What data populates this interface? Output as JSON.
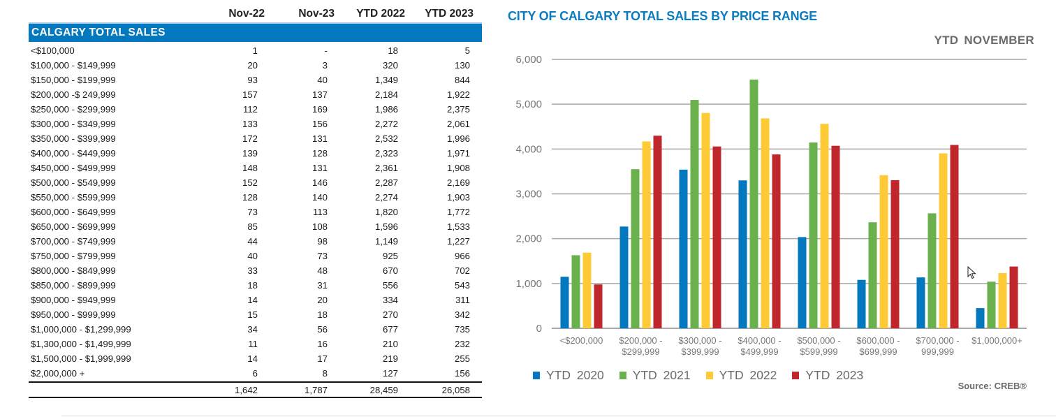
{
  "table": {
    "headers": [
      "",
      "Nov-22",
      "Nov-23",
      "YTD 2022",
      "YTD 2023"
    ],
    "section_title": "CALGARY TOTAL SALES",
    "rows": [
      {
        "label": "<$100,000",
        "nov22": "1",
        "nov23": "-",
        "ytd2022": "18",
        "ytd2023": "5"
      },
      {
        "label": "$100,000 - $149,999",
        "nov22": "20",
        "nov23": "3",
        "ytd2022": "320",
        "ytd2023": "130"
      },
      {
        "label": "$150,000 - $199,999",
        "nov22": "93",
        "nov23": "40",
        "ytd2022": "1,349",
        "ytd2023": "844"
      },
      {
        "label": "$200,000 -$ 249,999",
        "nov22": "157",
        "nov23": "137",
        "ytd2022": "2,184",
        "ytd2023": "1,922"
      },
      {
        "label": "$250,000 - $299,999",
        "nov22": "112",
        "nov23": "169",
        "ytd2022": "1,986",
        "ytd2023": "2,375"
      },
      {
        "label": "$300,000 - $349,999",
        "nov22": "133",
        "nov23": "156",
        "ytd2022": "2,272",
        "ytd2023": "2,061"
      },
      {
        "label": "$350,000 - $399,999",
        "nov22": "172",
        "nov23": "131",
        "ytd2022": "2,532",
        "ytd2023": "1,996"
      },
      {
        "label": "$400,000 - $449,999",
        "nov22": "139",
        "nov23": "128",
        "ytd2022": "2,323",
        "ytd2023": "1,971"
      },
      {
        "label": "$450,000 - $499,999",
        "nov22": "148",
        "nov23": "131",
        "ytd2022": "2,361",
        "ytd2023": "1,908"
      },
      {
        "label": "$500,000 - $549,999",
        "nov22": "152",
        "nov23": "146",
        "ytd2022": "2,287",
        "ytd2023": "2,169"
      },
      {
        "label": "$550,000 - $599,999",
        "nov22": "128",
        "nov23": "140",
        "ytd2022": "2,274",
        "ytd2023": "1,903"
      },
      {
        "label": "$600,000 - $649,999",
        "nov22": "73",
        "nov23": "113",
        "ytd2022": "1,820",
        "ytd2023": "1,772"
      },
      {
        "label": "$650,000 - $699,999",
        "nov22": "85",
        "nov23": "108",
        "ytd2022": "1,596",
        "ytd2023": "1,533"
      },
      {
        "label": "$700,000 - $749,999",
        "nov22": "44",
        "nov23": "98",
        "ytd2022": "1,149",
        "ytd2023": "1,227"
      },
      {
        "label": "$750,000 - $799,999",
        "nov22": "40",
        "nov23": "73",
        "ytd2022": "925",
        "ytd2023": "966"
      },
      {
        "label": "$800,000 - $849,999",
        "nov22": "33",
        "nov23": "48",
        "ytd2022": "670",
        "ytd2023": "702"
      },
      {
        "label": "$850,000 - $899,999",
        "nov22": "18",
        "nov23": "31",
        "ytd2022": "556",
        "ytd2023": "543"
      },
      {
        "label": "$900,000 - $949,999",
        "nov22": "14",
        "nov23": "20",
        "ytd2022": "334",
        "ytd2023": "311"
      },
      {
        "label": "$950,000 - $999,999",
        "nov22": "15",
        "nov23": "18",
        "ytd2022": "270",
        "ytd2023": "342"
      },
      {
        "label": "$1,000,000 - $1,299,999",
        "nov22": "34",
        "nov23": "56",
        "ytd2022": "677",
        "ytd2023": "735"
      },
      {
        "label": "$1,300,000 - $1,499,999",
        "nov22": "11",
        "nov23": "16",
        "ytd2022": "210",
        "ytd2023": "232"
      },
      {
        "label": "$1,500,000 - $1,999,999",
        "nov22": "14",
        "nov23": "17",
        "ytd2022": "219",
        "ytd2023": "255"
      },
      {
        "label": "$2,000,000 +",
        "nov22": "6",
        "nov23": "8",
        "ytd2022": "127",
        "ytd2023": "156"
      }
    ],
    "totals": {
      "label": "",
      "nov22": "1,642",
      "nov23": "1,787",
      "ytd2022": "28,459",
      "ytd2023": "26,058"
    },
    "section_color": "#0378be"
  },
  "chart_data": {
    "type": "bar",
    "title": "CITY OF CALGARY TOTAL SALES BY PRICE RANGE",
    "subtitle": "YTD  NOVEMBER",
    "xlabel": "",
    "ylabel": "",
    "ylim": [
      0,
      6000
    ],
    "yticks": [
      0,
      1000,
      2000,
      3000,
      4000,
      5000,
      6000
    ],
    "ytick_labels": [
      "0",
      "1,000",
      "2,000",
      "3,000",
      "4,000",
      "5,000",
      "6,000"
    ],
    "grid": true,
    "legend_position": "bottom-left",
    "categories": [
      [
        "<$200,000"
      ],
      [
        "$200,000 -",
        "$299,999"
      ],
      [
        "$300,000 -",
        "$399,999"
      ],
      [
        "$400,000 -",
        "$499,999"
      ],
      [
        "$500,000 -",
        "$599,999"
      ],
      [
        "$600,000 -",
        "$699,999"
      ],
      [
        "$700,000 -",
        "999,999"
      ],
      [
        "$1,000,000+"
      ]
    ],
    "series": [
      {
        "name": "YTD  2020",
        "color": "#0378be",
        "values": [
          1150,
          2270,
          3540,
          3300,
          2035,
          1080,
          1135,
          450
        ]
      },
      {
        "name": "YTD  2021",
        "color": "#6ab04c",
        "values": [
          1630,
          3550,
          5095,
          5550,
          4145,
          2365,
          2565,
          1040
        ]
      },
      {
        "name": "YTD  2022",
        "color": "#fecb36",
        "values": [
          1687,
          4170,
          4804,
          4684,
          4561,
          3416,
          3904,
          1233
        ]
      },
      {
        "name": "YTD  2023",
        "color": "#c0272d",
        "values": [
          979,
          4297,
          4057,
          3879,
          4072,
          3305,
          4091,
          1378
        ]
      }
    ],
    "source": "Source: CREB®"
  }
}
